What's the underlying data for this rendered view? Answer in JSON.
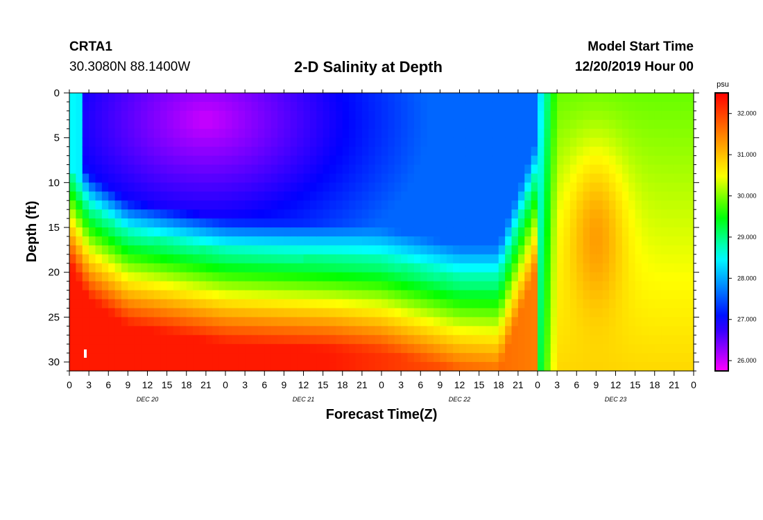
{
  "header": {
    "station_id": "CRTA1",
    "coords": "30.3080N 88.1400W",
    "title": "2-D Salinity at Depth",
    "start_label": "Model Start Time",
    "start_value": "12/20/2019 Hour 00"
  },
  "chart_data": {
    "type": "heatmap",
    "title": "2-D Salinity at Depth",
    "xlabel": "Forecast Time(Z)",
    "ylabel": "Depth (ft)",
    "x_range_hours": [
      0,
      96
    ],
    "ylim": [
      0,
      31
    ],
    "y_inverted": true,
    "x_tick_hours": [
      0,
      3,
      6,
      9,
      12,
      15,
      18,
      21,
      24,
      27,
      30,
      33,
      36,
      39,
      42,
      45,
      48,
      51,
      54,
      57,
      60,
      63,
      66,
      69,
      72,
      75,
      78,
      81,
      84,
      87,
      90,
      93,
      96
    ],
    "x_tick_labels": [
      "0",
      "3",
      "6",
      "9",
      "12",
      "15",
      "18",
      "21",
      "0",
      "3",
      "6",
      "9",
      "12",
      "15",
      "18",
      "21",
      "0",
      "3",
      "6",
      "9",
      "12",
      "15",
      "18",
      "21",
      "0",
      "3",
      "6",
      "9",
      "12",
      "15",
      "18",
      "21",
      "0"
    ],
    "date_labels": [
      {
        "hour": 12,
        "label": "DEC 20"
      },
      {
        "hour": 36,
        "label": "DEC 21"
      },
      {
        "hour": 60,
        "label": "DEC 22"
      },
      {
        "hour": 84,
        "label": "DEC 23"
      }
    ],
    "y_ticks": [
      0,
      5,
      10,
      15,
      20,
      25,
      30
    ],
    "y_tick_labels": [
      "0",
      "5",
      "10",
      "15",
      "20",
      "25",
      "30"
    ],
    "colorbar": {
      "unit": "psu",
      "range": [
        25.75,
        32.5
      ],
      "ticks": [
        26,
        27,
        28,
        29,
        30,
        31,
        32
      ],
      "tick_labels": [
        "26.000",
        "27.000",
        "28.000",
        "29.000",
        "30.000",
        "31.000",
        "32.000"
      ]
    },
    "colormap": [
      {
        "v": 25.75,
        "c": "#ff00ff"
      },
      {
        "v": 27.0,
        "c": "#0000ff"
      },
      {
        "v": 28.5,
        "c": "#00ffff"
      },
      {
        "v": 29.5,
        "c": "#00ff00"
      },
      {
        "v": 30.5,
        "c": "#ffff00"
      },
      {
        "v": 31.2,
        "c": "#ffa500"
      },
      {
        "v": 32.5,
        "c": "#ff0000"
      }
    ],
    "field": {
      "deep_salinity": 32.3,
      "surface_salinity_end": 29.9,
      "low_salinity_core": 26.0,
      "halocline_depth_ft": [
        {
          "hour": 0,
          "depth": 9
        },
        {
          "hour": 3,
          "depth": 13
        },
        {
          "hour": 9,
          "depth": 16
        },
        {
          "hour": 24,
          "depth": 18
        },
        {
          "hour": 48,
          "depth": 19
        },
        {
          "hour": 60,
          "depth": 21
        },
        {
          "hour": 66,
          "depth": 21
        },
        {
          "hour": 72,
          "depth": 9
        },
        {
          "hour": 75,
          "depth": 3
        },
        {
          "hour": 96,
          "depth": 3
        }
      ],
      "warm_plume": {
        "hour": 81,
        "depth_top": 8,
        "depth_bottom": 22,
        "value": 30.8
      }
    }
  }
}
